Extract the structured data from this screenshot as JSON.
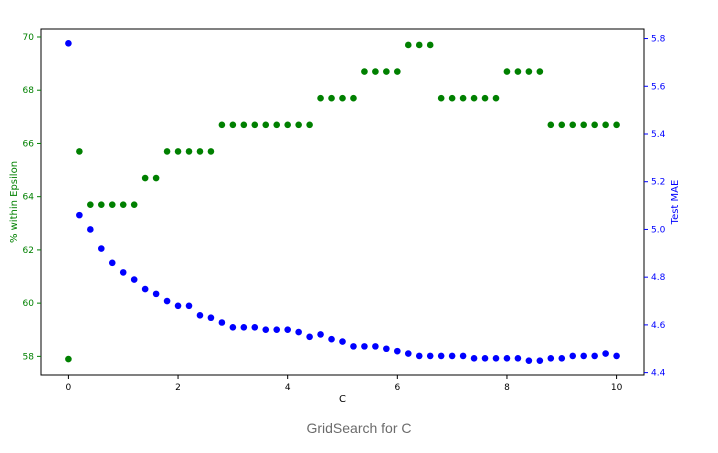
{
  "caption": "GridSearch for C",
  "chart_data": {
    "type": "scatter",
    "xlabel": "C",
    "xlim": [
      -0.5,
      10.5
    ],
    "xticks": [
      0,
      2,
      4,
      6,
      8,
      10
    ],
    "y_left": {
      "label": "% within Epsilon",
      "color": "#008000",
      "lim": [
        57.3,
        70.3
      ],
      "ticks": [
        58,
        60,
        62,
        64,
        66,
        68,
        70
      ]
    },
    "y_right": {
      "label": "Test MAE",
      "color": "#0000ff",
      "lim": [
        4.39,
        5.84
      ],
      "ticks": [
        4.4,
        4.6,
        4.8,
        5.0,
        5.2,
        5.4,
        5.6,
        5.8
      ]
    },
    "series": [
      {
        "axis": "left",
        "color": "#008000",
        "points": [
          [
            0.0,
            57.9
          ],
          [
            0.2,
            65.7
          ],
          [
            0.4,
            63.7
          ],
          [
            0.6,
            63.7
          ],
          [
            0.8,
            63.7
          ],
          [
            1.0,
            63.7
          ],
          [
            1.2,
            63.7
          ],
          [
            1.4,
            64.7
          ],
          [
            1.6,
            64.7
          ],
          [
            1.8,
            65.7
          ],
          [
            2.0,
            65.7
          ],
          [
            2.2,
            65.7
          ],
          [
            2.4,
            65.7
          ],
          [
            2.6,
            65.7
          ],
          [
            2.8,
            66.7
          ],
          [
            3.0,
            66.7
          ],
          [
            3.2,
            66.7
          ],
          [
            3.4,
            66.7
          ],
          [
            3.6,
            66.7
          ],
          [
            3.8,
            66.7
          ],
          [
            4.0,
            66.7
          ],
          [
            4.2,
            66.7
          ],
          [
            4.4,
            66.7
          ],
          [
            4.6,
            67.7
          ],
          [
            4.8,
            67.7
          ],
          [
            5.0,
            67.7
          ],
          [
            5.2,
            67.7
          ],
          [
            5.4,
            68.7
          ],
          [
            5.6,
            68.7
          ],
          [
            5.8,
            68.7
          ],
          [
            6.0,
            68.7
          ],
          [
            6.2,
            69.7
          ],
          [
            6.4,
            69.7
          ],
          [
            6.6,
            69.7
          ],
          [
            6.8,
            67.7
          ],
          [
            7.0,
            67.7
          ],
          [
            7.2,
            67.7
          ],
          [
            7.4,
            67.7
          ],
          [
            7.6,
            67.7
          ],
          [
            7.8,
            67.7
          ],
          [
            8.0,
            68.7
          ],
          [
            8.2,
            68.7
          ],
          [
            8.4,
            68.7
          ],
          [
            8.6,
            68.7
          ],
          [
            8.8,
            66.7
          ],
          [
            9.0,
            66.7
          ],
          [
            9.2,
            66.7
          ],
          [
            9.4,
            66.7
          ],
          [
            9.6,
            66.7
          ],
          [
            9.8,
            66.7
          ],
          [
            10.0,
            66.7
          ]
        ]
      },
      {
        "axis": "right",
        "color": "#0000ff",
        "points": [
          [
            0.0,
            5.78
          ],
          [
            0.2,
            5.06
          ],
          [
            0.4,
            5.0
          ],
          [
            0.6,
            4.92
          ],
          [
            0.8,
            4.86
          ],
          [
            1.0,
            4.82
          ],
          [
            1.2,
            4.79
          ],
          [
            1.4,
            4.75
          ],
          [
            1.6,
            4.73
          ],
          [
            1.8,
            4.7
          ],
          [
            2.0,
            4.68
          ],
          [
            2.2,
            4.68
          ],
          [
            2.4,
            4.64
          ],
          [
            2.6,
            4.63
          ],
          [
            2.8,
            4.61
          ],
          [
            3.0,
            4.59
          ],
          [
            3.2,
            4.59
          ],
          [
            3.4,
            4.59
          ],
          [
            3.6,
            4.58
          ],
          [
            3.8,
            4.58
          ],
          [
            4.0,
            4.58
          ],
          [
            4.2,
            4.57
          ],
          [
            4.4,
            4.55
          ],
          [
            4.6,
            4.56
          ],
          [
            4.8,
            4.54
          ],
          [
            5.0,
            4.53
          ],
          [
            5.2,
            4.51
          ],
          [
            5.4,
            4.51
          ],
          [
            5.6,
            4.51
          ],
          [
            5.8,
            4.5
          ],
          [
            6.0,
            4.49
          ],
          [
            6.2,
            4.48
          ],
          [
            6.4,
            4.47
          ],
          [
            6.6,
            4.47
          ],
          [
            6.8,
            4.47
          ],
          [
            7.0,
            4.47
          ],
          [
            7.2,
            4.47
          ],
          [
            7.4,
            4.46
          ],
          [
            7.6,
            4.46
          ],
          [
            7.8,
            4.46
          ],
          [
            8.0,
            4.46
          ],
          [
            8.2,
            4.46
          ],
          [
            8.4,
            4.45
          ],
          [
            8.6,
            4.45
          ],
          [
            8.8,
            4.46
          ],
          [
            9.0,
            4.46
          ],
          [
            9.2,
            4.47
          ],
          [
            9.4,
            4.47
          ],
          [
            9.6,
            4.47
          ],
          [
            9.8,
            4.48
          ],
          [
            10.0,
            4.47
          ]
        ]
      }
    ]
  }
}
